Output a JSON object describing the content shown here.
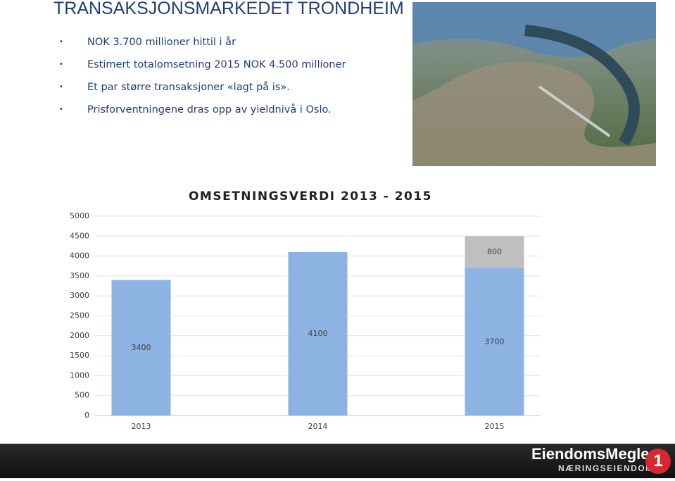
{
  "header": {
    "title": "TRANSAKSJONSMARKEDET TRONDHEIM"
  },
  "bullets": [
    "NOK 3.700 millioner hittil i år",
    "Estimert totalomsetning 2015 NOK 4.500 millioner",
    "Et par større transaksjoner «lagt på is».",
    "Prisforventningene dras opp av yieldnivå i Oslo."
  ],
  "chart_data": {
    "type": "stacked-bar",
    "title": "OMSETNINGSVERDI 2013 - 2015",
    "categories": [
      "2013",
      "2014",
      "2015"
    ],
    "series": [
      {
        "color": "#8db3e2",
        "values": [
          3400,
          4100,
          3700
        ]
      },
      {
        "color": "#bfbfbf",
        "values": [
          null,
          null,
          800
        ]
      }
    ],
    "ylim": [
      0,
      5000
    ],
    "yticks": [
      0,
      500,
      1000,
      1500,
      2000,
      2500,
      3000,
      3500,
      4000,
      4500,
      5000
    ],
    "grid": true,
    "data_labels": true
  },
  "footer": {
    "logo": "EiendomsMegler",
    "sub": "NÆRINGSEIENDOM",
    "badge": "1"
  }
}
